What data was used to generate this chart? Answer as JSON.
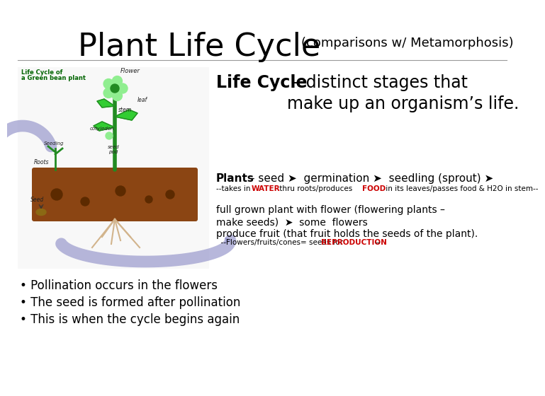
{
  "title_main": "Plant Life Cycle",
  "title_sub": "(comparisons w/ Metamorphosis)",
  "title_fontsize": 32,
  "title_sub_fontsize": 13,
  "bg_color": "#ffffff",
  "text_color": "#000000",
  "red_color": "#cc0000",
  "dark_green": "#006400",
  "lifecycle_def_bold": "Life Cycle",
  "lifecycle_def_rest": " – distinct stages that\nmake up an organism’s life.",
  "lifecycle_def_fontsize": 17,
  "plants_line1_bold": "Plants",
  "plants_line1_rest": " – seed ➤  germination ➤  seedling (sprout) ➤",
  "plants_line2_pre": "--takes in ",
  "plants_line2_water": "WATER",
  "plants_line2_mid": " thru roots/produces ",
  "plants_line2_food": "FOOD",
  "plants_line2_end": " in its leaves/passes food & H2O in stem--",
  "plants_fontsize": 10,
  "plants_small_fontsize": 7.5,
  "para2_line1": "full grown plant with flower (flowering plants –",
  "para2_line2": "make seeds)  ➤  some  flowers",
  "para2_line3": "produce fruit (that fruit holds the seeds of the plant).",
  "para2_line4_pre": "  --Flowers/fruits/cones= seeds for ",
  "para2_line4_red": "REPRODUCTION",
  "para2_line4_end": "--",
  "para2_fontsize": 10,
  "para2_small_fontsize": 7.5,
  "bullet1": "• Pollination occurs in the flowers",
  "bullet2": "• The seed is formed after pollination",
  "bullet3": "• This is when the cycle begins again",
  "bullet_fontsize": 12
}
